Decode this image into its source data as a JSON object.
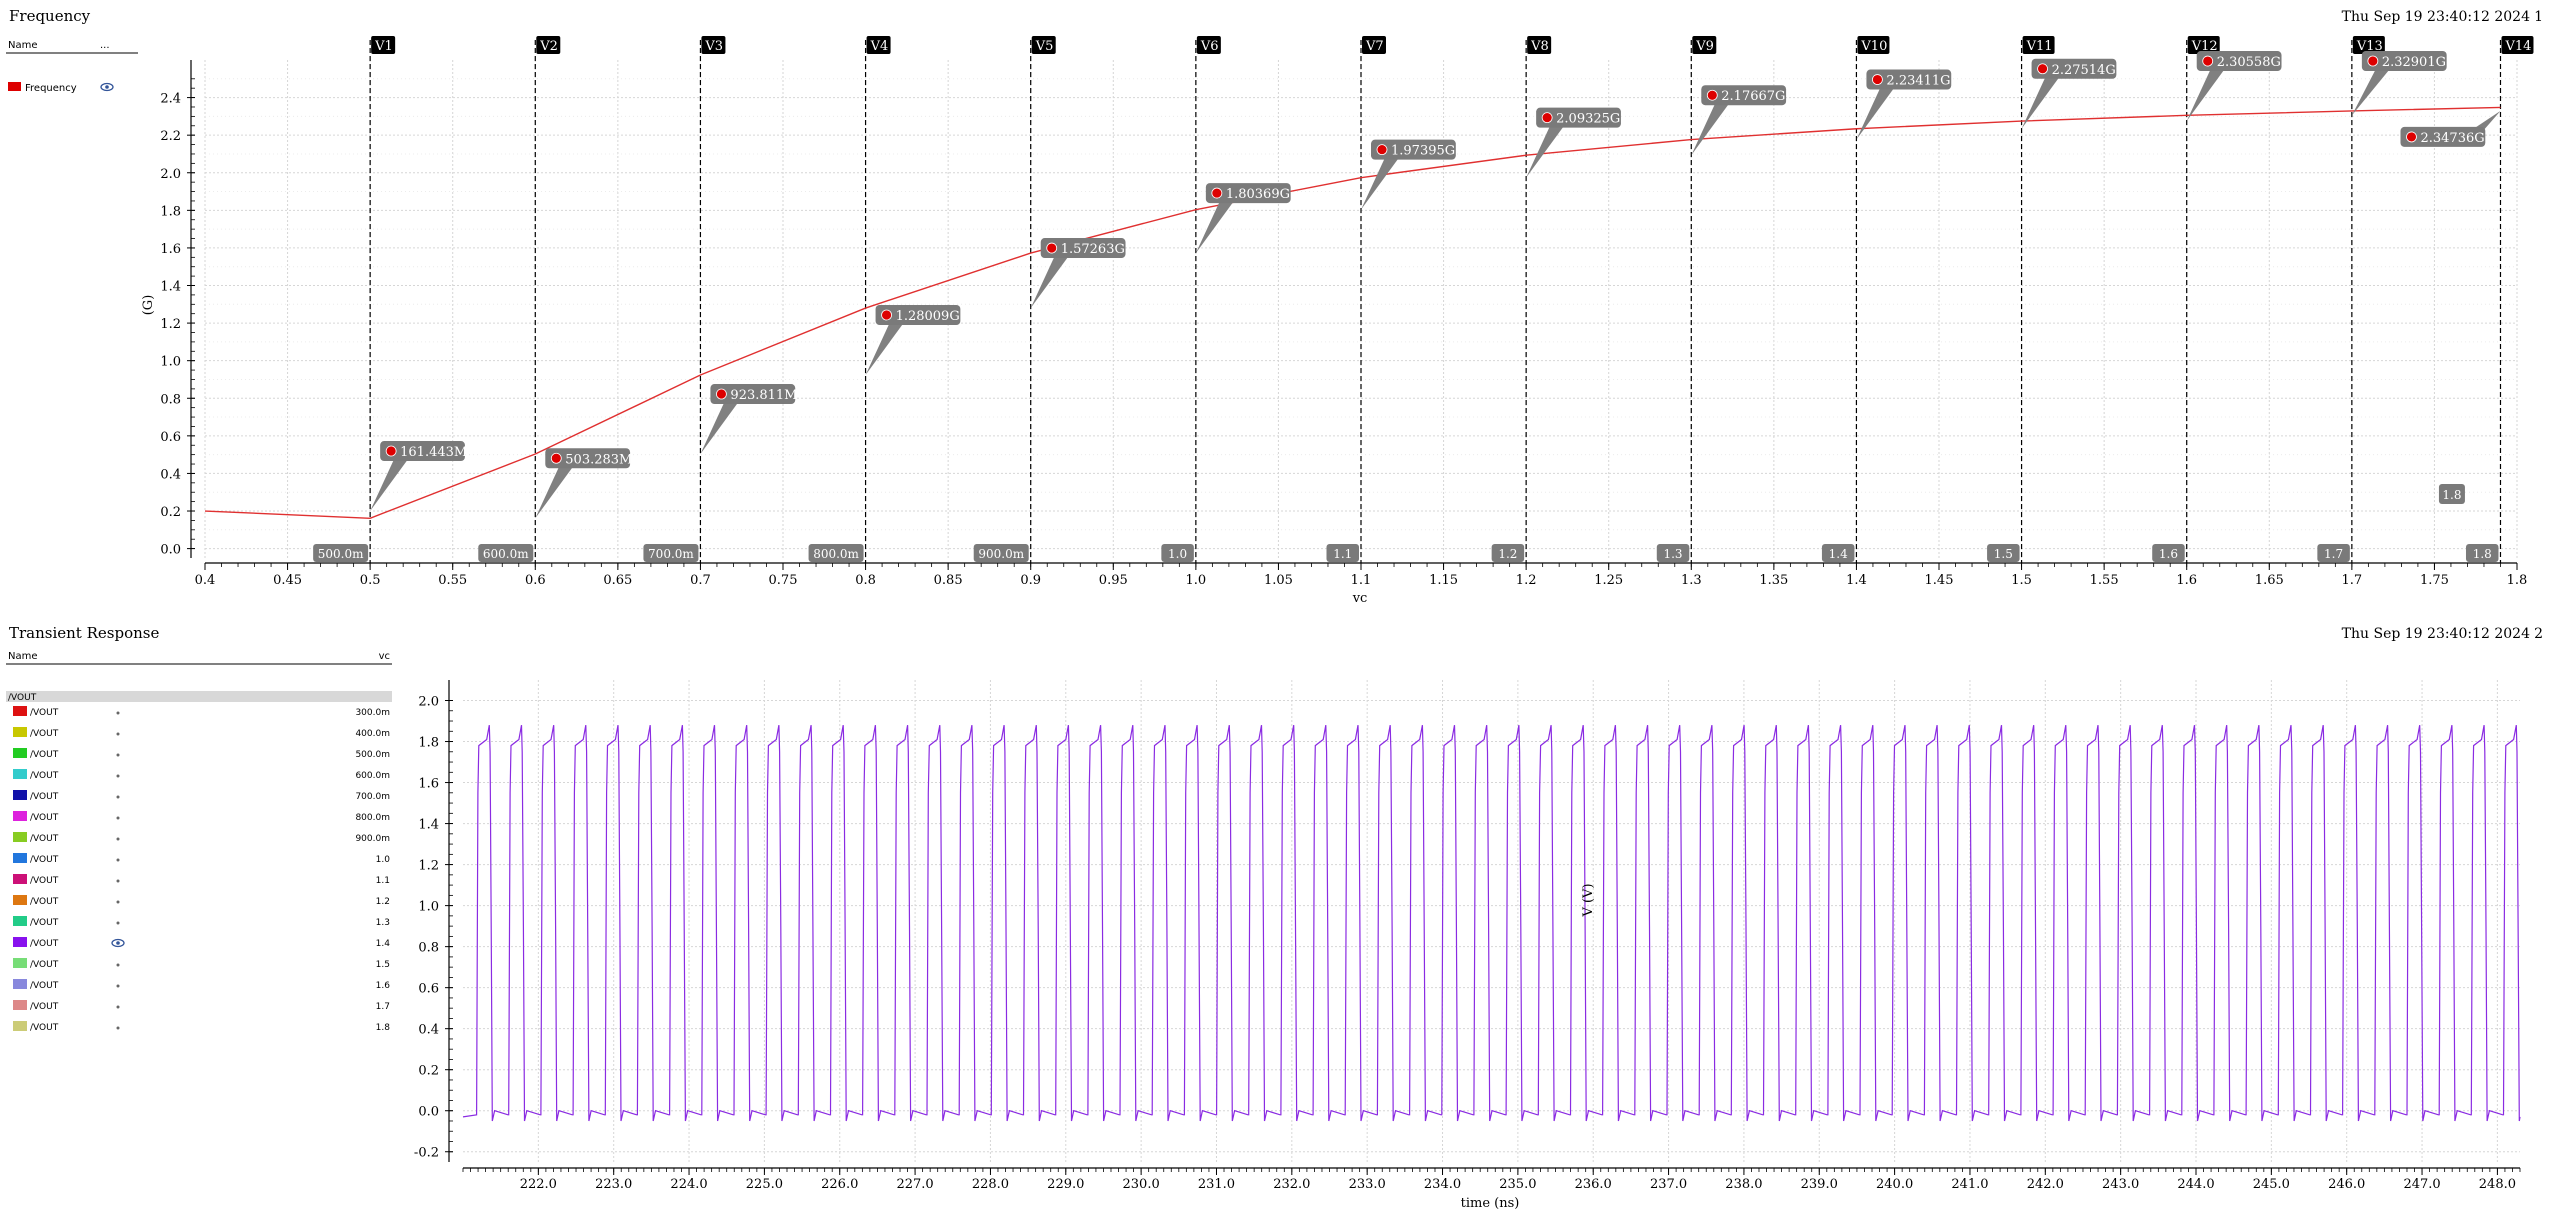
{
  "top_panel": {
    "title": "Frequency",
    "timestamp": "Thu Sep 19 23:40:12 2024",
    "page_number": "1",
    "legend_header_name": "Name",
    "legend_header_extra": "...",
    "legend_entries": [
      {
        "label": "Frequency",
        "color": "#dd0000",
        "visible_icon": "eye-icon"
      }
    ]
  },
  "bottom_panel": {
    "title": "Transient Response",
    "timestamp": "Thu Sep 19 23:40:12 2024",
    "page_number": "2",
    "legend_header_name": "Name",
    "legend_header_param": "vc",
    "group_label": "/VOUT",
    "legend_entries": [
      {
        "label": "/VOUT",
        "value": "300.0m",
        "color": "#dd1111",
        "icon": "dot-icon"
      },
      {
        "label": "/VOUT",
        "value": "400.0m",
        "color": "#c8c800",
        "icon": "dot-icon"
      },
      {
        "label": "/VOUT",
        "value": "500.0m",
        "color": "#22cc22",
        "icon": "dot-icon"
      },
      {
        "label": "/VOUT",
        "value": "600.0m",
        "color": "#33cccc",
        "icon": "dot-icon"
      },
      {
        "label": "/VOUT",
        "value": "700.0m",
        "color": "#1111aa",
        "icon": "dot-icon"
      },
      {
        "label": "/VOUT",
        "value": "800.0m",
        "color": "#dd22dd",
        "icon": "dot-icon"
      },
      {
        "label": "/VOUT",
        "value": "900.0m",
        "color": "#88cc22",
        "icon": "dot-icon"
      },
      {
        "label": "/VOUT",
        "value": "1.0",
        "color": "#2277dd",
        "icon": "dot-icon"
      },
      {
        "label": "/VOUT",
        "value": "1.1",
        "color": "#cc1177",
        "icon": "dot-icon"
      },
      {
        "label": "/VOUT",
        "value": "1.2",
        "color": "#dd7711",
        "icon": "dot-icon"
      },
      {
        "label": "/VOUT",
        "value": "1.3",
        "color": "#22cc88",
        "icon": "dot-icon"
      },
      {
        "label": "/VOUT",
        "value": "1.4",
        "color": "#8811ee",
        "icon": "eye-icon"
      },
      {
        "label": "/VOUT",
        "value": "1.5",
        "color": "#77dd77",
        "icon": "dot-icon"
      },
      {
        "label": "/VOUT",
        "value": "1.6",
        "color": "#8888dd",
        "icon": "dot-icon"
      },
      {
        "label": "/VOUT",
        "value": "1.7",
        "color": "#dd8888",
        "icon": "dot-icon"
      },
      {
        "label": "/VOUT",
        "value": "1.8",
        "color": "#cccc77",
        "icon": "dot-icon"
      }
    ]
  },
  "chart_data": [
    {
      "type": "line",
      "xlabel": "vc",
      "ylabel": "(G)",
      "xlim": [
        0.4,
        1.8
      ],
      "ylim": [
        -0.05,
        2.6
      ],
      "grid": true,
      "x_ticks": [
        "0.4",
        "0.45",
        "0.5",
        "0.55",
        "0.6",
        "0.65",
        "0.7",
        "0.75",
        "0.8",
        "0.85",
        "0.9",
        "0.95",
        "1.0",
        "1.05",
        "1.1",
        "1.15",
        "1.2",
        "1.25",
        "1.3",
        "1.35",
        "1.4",
        "1.45",
        "1.5",
        "1.55",
        "1.6",
        "1.65",
        "1.7",
        "1.75",
        "1.8"
      ],
      "y_ticks": [
        "0.0",
        "0.2",
        "0.4",
        "0.6",
        "0.8",
        "1.0",
        "1.2",
        "1.4",
        "1.6",
        "1.8",
        "2.0",
        "2.2",
        "2.4"
      ],
      "series": [
        {
          "name": "Frequency",
          "color": "#e03030",
          "x": [
            0.4,
            0.5,
            0.6,
            0.7,
            0.8,
            0.9,
            1.0,
            1.1,
            1.2,
            1.3,
            1.4,
            1.5,
            1.6,
            1.7,
            1.79
          ],
          "y": [
            0.2,
            0.161443,
            0.503283,
            0.923811,
            1.28009,
            1.57263,
            1.80369,
            1.97395,
            2.09325,
            2.17667,
            2.23411,
            2.27514,
            2.30558,
            2.32901,
            2.34736
          ]
        }
      ],
      "markers": [
        {
          "name": "V1",
          "x": 0.5,
          "label": "161.443M",
          "x_label": "500.0m"
        },
        {
          "name": "V2",
          "x": 0.6,
          "label": "503.283M",
          "x_label": "600.0m"
        },
        {
          "name": "V3",
          "x": 0.7,
          "label": "923.811M",
          "x_label": "700.0m"
        },
        {
          "name": "V4",
          "x": 0.8,
          "label": "1.28009G",
          "x_label": "800.0m"
        },
        {
          "name": "V5",
          "x": 0.9,
          "label": "1.57263G",
          "x_label": "900.0m"
        },
        {
          "name": "V6",
          "x": 1.0,
          "label": "1.80369G",
          "x_label": "1.0"
        },
        {
          "name": "V7",
          "x": 1.1,
          "label": "1.97395G",
          "x_label": "1.1"
        },
        {
          "name": "V8",
          "x": 1.2,
          "label": "2.09325G",
          "x_label": "1.2"
        },
        {
          "name": "V9",
          "x": 1.3,
          "label": "2.17667G",
          "x_label": "1.3"
        },
        {
          "name": "V10",
          "x": 1.4,
          "label": "2.23411G",
          "x_label": "1.4"
        },
        {
          "name": "V11",
          "x": 1.5,
          "label": "2.27514G",
          "x_label": "1.5"
        },
        {
          "name": "V12",
          "x": 1.6,
          "label": "2.30558G",
          "x_label": "1.6"
        },
        {
          "name": "V13",
          "x": 1.7,
          "label": "2.32901G",
          "x_label": "1.7"
        },
        {
          "name": "V14",
          "x": 1.79,
          "label": "2.34736G",
          "x_label": "1.8"
        }
      ]
    },
    {
      "type": "line",
      "xlabel": "time (ns)",
      "ylabel": "V (V)",
      "xlim": [
        221.0,
        248.3
      ],
      "ylim": [
        -0.25,
        2.1
      ],
      "grid": true,
      "x_ticks": [
        "222.0",
        "223.0",
        "224.0",
        "225.0",
        "226.0",
        "227.0",
        "228.0",
        "229.0",
        "230.0",
        "231.0",
        "232.0",
        "233.0",
        "234.0",
        "235.0",
        "236.0",
        "237.0",
        "238.0",
        "239.0",
        "240.0",
        "241.0",
        "242.0",
        "243.0",
        "244.0",
        "245.0",
        "246.0",
        "247.0",
        "248.0"
      ],
      "y_ticks": [
        "-0.2",
        "0.0",
        "0.2",
        "0.4",
        "0.6",
        "0.8",
        "1.0",
        "1.2",
        "1.4",
        "1.6",
        "1.8",
        "2.0"
      ],
      "series": [
        {
          "name": "/VOUT",
          "color": "#8a2be2",
          "waveform": "square",
          "t_start": 221.0,
          "period_ns": 0.427,
          "first_rise_ns": 221.18,
          "low": -0.03,
          "high": 1.8,
          "overshoot": 1.88
        }
      ]
    }
  ]
}
